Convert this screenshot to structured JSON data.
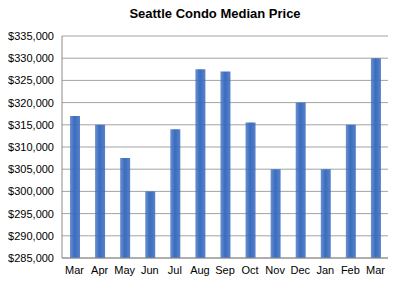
{
  "chart_data": {
    "type": "bar",
    "title": "Seattle Condo Median Price",
    "categories": [
      "Mar",
      "Apr",
      "May",
      "Jun",
      "Jul",
      "Aug",
      "Sep",
      "Oct",
      "Nov",
      "Dec",
      "Jan",
      "Feb",
      "Mar"
    ],
    "values": [
      317000,
      315000,
      307500,
      300000,
      314000,
      327500,
      327000,
      315500,
      305000,
      320000,
      305000,
      315000,
      330000
    ],
    "color": "#3b6cc0",
    "ylim": [
      285000,
      335000
    ],
    "yticks": [
      {
        "value": 285000,
        "label": "$285,000"
      },
      {
        "value": 290000,
        "label": "$290,000"
      },
      {
        "value": 295000,
        "label": "$295,000"
      },
      {
        "value": 300000,
        "label": "$300,000"
      },
      {
        "value": 305000,
        "label": "$305,000"
      },
      {
        "value": 310000,
        "label": "$310,000"
      },
      {
        "value": 315000,
        "label": "$315,000"
      },
      {
        "value": 320000,
        "label": "$320,000"
      },
      {
        "value": 325000,
        "label": "$325,000"
      },
      {
        "value": 330000,
        "label": "$330,000"
      },
      {
        "value": 335000,
        "label": "$335,000"
      }
    ],
    "grid": true
  }
}
